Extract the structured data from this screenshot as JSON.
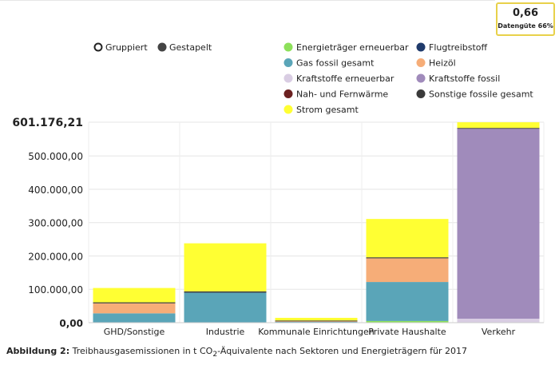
{
  "quality": {
    "value": "0,66",
    "label": "Datengüte 66%"
  },
  "view_modes": [
    {
      "label": "Gruppiert",
      "selected": false
    },
    {
      "label": "Gestapelt",
      "selected": true
    }
  ],
  "caption": {
    "label": "Abbildung 2:",
    "text_before": "Treibhausgasemissionen in t CO",
    "subscript": "2",
    "text_after": "-Äquivalente nach Sektoren und Energieträgern für 2017"
  },
  "chart_data": {
    "type": "bar",
    "stacked": true,
    "categories": [
      "GHD/Sonstige",
      "Industrie",
      "Kommunale Einrichtungen",
      "Private Haushalte",
      "Verkehr"
    ],
    "y_ticks": [
      "0,00",
      "100.000,00",
      "200.000,00",
      "300.000,00",
      "400.000,00",
      "500.000,00",
      "601.176,21"
    ],
    "y_tick_values": [
      0,
      100000,
      200000,
      300000,
      400000,
      500000,
      601176.21
    ],
    "ylim": [
      0,
      601176.21
    ],
    "grid": true,
    "legend_position": "top",
    "series": [
      {
        "name": "Kraftstoffe erneuerbar",
        "color": "#d9cde3",
        "values": [
          0,
          0,
          0,
          0,
          12000
        ]
      },
      {
        "name": "Energieträger erneuerbar",
        "color": "#8de05a",
        "values": [
          0,
          0,
          0,
          5000,
          0
        ]
      },
      {
        "name": "Gas fossil gesamt",
        "color": "#5aa5b8",
        "values": [
          28000,
          90000,
          4000,
          117000,
          0
        ]
      },
      {
        "name": "Heizöl",
        "color": "#f6ad78",
        "values": [
          30000,
          0,
          1000,
          71000,
          0
        ]
      },
      {
        "name": "Flugtreibstoff",
        "color": "#1f3a6b",
        "values": [
          0,
          0,
          0,
          0,
          0
        ]
      },
      {
        "name": "Kraftstoffe fossil",
        "color": "#a08bbb",
        "values": [
          0,
          0,
          0,
          0,
          570000
        ]
      },
      {
        "name": "Nah- und Fernwärme",
        "color": "#6b2020",
        "values": [
          0,
          0,
          0,
          0,
          0
        ]
      },
      {
        "name": "Sonstige fossile gesamt",
        "color": "#3a3a3a",
        "values": [
          3000,
          4000,
          1500,
          3000,
          2000
        ]
      },
      {
        "name": "Strom gesamt",
        "color": "#ffff33",
        "values": [
          43000,
          144000,
          8000,
          115000,
          17000
        ]
      }
    ],
    "legend_order": [
      "Energieträger erneuerbar",
      "Flugtreibstoff",
      "Gas fossil gesamt",
      "Heizöl",
      "Kraftstoffe erneuerbar",
      "Kraftstoffe fossil",
      "Nah- und Fernwärme",
      "Sonstige fossile gesamt",
      "Strom gesamt"
    ]
  }
}
